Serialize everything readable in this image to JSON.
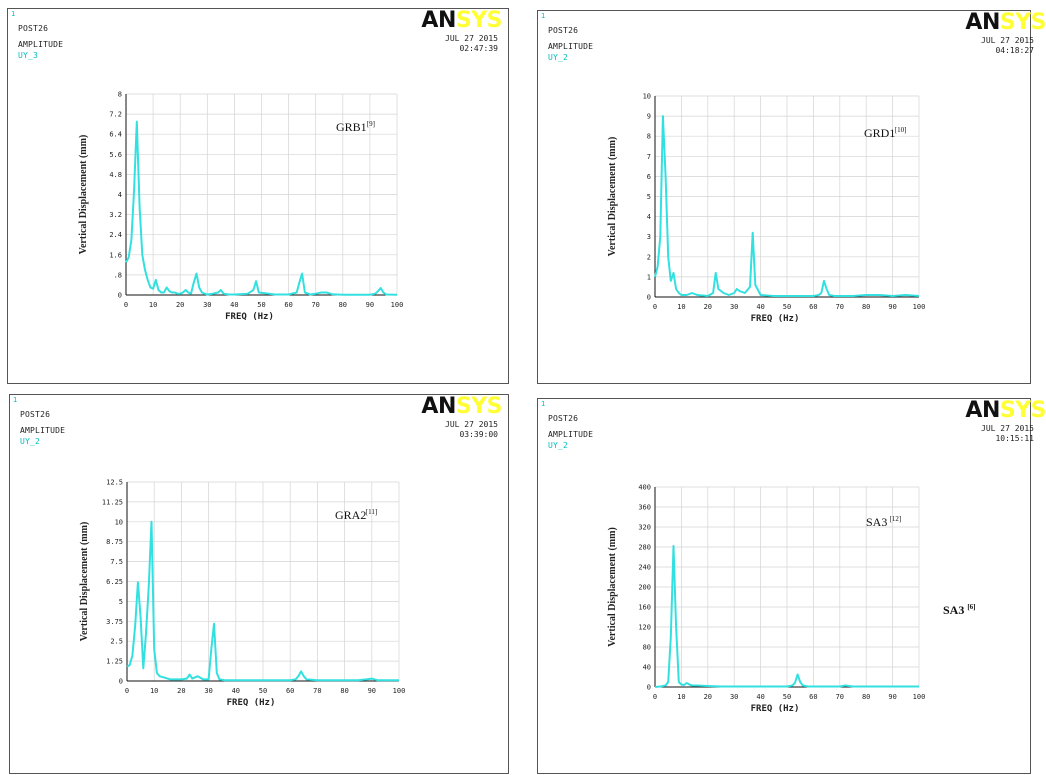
{
  "panels": [
    {
      "corner_label": "1",
      "program": "POST26",
      "display": "AMPLITUDE",
      "variable": "UY_3",
      "logo_dark": "AN",
      "logo_light": "SYS",
      "date": "JUL 27 2015",
      "time": "02:47:39"
    },
    {
      "corner_label": "1",
      "program": "POST26",
      "display": "AMPLITUDE",
      "variable": "UY_2",
      "logo_dark": "AN",
      "logo_light": "SYS",
      "date": "JUL 27 2015",
      "time": "04:18:27"
    },
    {
      "corner_label": "1",
      "program": "POST26",
      "display": "AMPLITUDE",
      "variable": "UY_2",
      "logo_dark": "AN",
      "logo_light": "SYS",
      "date": "JUL 27 2015",
      "time": "03:39:00"
    },
    {
      "corner_label": "1",
      "program": "POST26",
      "display": "AMPLITUDE",
      "variable": "UY_2",
      "logo_dark": "AN",
      "logo_light": "SYS",
      "date": "JUL 27 2015",
      "time": "10:15:11",
      "extra_label": "SA3",
      "extra_ref": "[6]"
    }
  ],
  "colors": {
    "curve": "#33e0e0",
    "grid": "#d4d4d4",
    "axis": "#111111",
    "accent_text": "#00bfbf",
    "logo_light": "#ffff33"
  },
  "chart_data": [
    {
      "type": "line",
      "title": "GRB1",
      "title_ref": "[9]",
      "xlabel": "FREQ  (Hz)",
      "ylabel": "Vertical Displacement (mm)",
      "xlim": [
        0,
        100
      ],
      "ylim": [
        0,
        8
      ],
      "xticks": [
        "0",
        "10",
        "20",
        "30",
        "40",
        "50",
        "60",
        "70",
        "80",
        "90",
        "100"
      ],
      "yticks": [
        "0",
        ".8",
        "1.6",
        "2.4",
        "3.2",
        "4",
        "4.8",
        "5.6",
        "6.4",
        "7.2",
        "8"
      ],
      "grid": true,
      "x": [
        0,
        1,
        2,
        3,
        4,
        5,
        6,
        7,
        8,
        9,
        10,
        11,
        12,
        13,
        14,
        15,
        16,
        17,
        18,
        19,
        20,
        21,
        22,
        23,
        24,
        25,
        26,
        27,
        28,
        29,
        30,
        32,
        34,
        35,
        36,
        38,
        40,
        45,
        47,
        48,
        49,
        55,
        60,
        63,
        64,
        65,
        66,
        68,
        70,
        72,
        74,
        76,
        78,
        80,
        90,
        92,
        93,
        94,
        95,
        96,
        100
      ],
      "y": [
        1.3,
        1.5,
        2.2,
        4.2,
        6.9,
        3.5,
        1.6,
        1.0,
        0.6,
        0.3,
        0.25,
        0.6,
        0.2,
        0.1,
        0.1,
        0.3,
        0.15,
        0.1,
        0.1,
        0.05,
        0.05,
        0.1,
        0.2,
        0.1,
        0.05,
        0.5,
        0.85,
        0.3,
        0.1,
        0.05,
        0.02,
        0.05,
        0.1,
        0.2,
        0.05,
        0.02,
        0.02,
        0.05,
        0.2,
        0.55,
        0.1,
        0.02,
        0.02,
        0.1,
        0.5,
        0.85,
        0.1,
        0.02,
        0.05,
        0.1,
        0.1,
        0.03,
        0.02,
        0.01,
        0.01,
        0.05,
        0.15,
        0.28,
        0.1,
        0.02,
        0.01
      ]
    },
    {
      "type": "line",
      "title": "GRD1",
      "title_ref": "[10]",
      "xlabel": "FREQ  (Hz)",
      "ylabel": "Vertical Displacement (mm)",
      "xlim": [
        0,
        100
      ],
      "ylim": [
        0,
        10
      ],
      "xticks": [
        "0",
        "10",
        "20",
        "30",
        "40",
        "50",
        "60",
        "70",
        "80",
        "90",
        "100"
      ],
      "yticks": [
        "0",
        "1",
        "2",
        "3",
        "4",
        "5",
        "6",
        "7",
        "8",
        "9",
        "10"
      ],
      "grid": true,
      "x": [
        0,
        1,
        2,
        3,
        4,
        5,
        6,
        7,
        8,
        9,
        10,
        12,
        14,
        16,
        20,
        22,
        23,
        24,
        26,
        28,
        30,
        31,
        32,
        34,
        36,
        37,
        38,
        40,
        45,
        50,
        55,
        60,
        62,
        63,
        64,
        65,
        66,
        68,
        70,
        75,
        80,
        85,
        90,
        95,
        100
      ],
      "y": [
        1.0,
        1.5,
        3.0,
        9.0,
        6.0,
        2.0,
        0.8,
        1.2,
        0.4,
        0.2,
        0.1,
        0.1,
        0.2,
        0.1,
        0.05,
        0.2,
        1.2,
        0.4,
        0.2,
        0.1,
        0.2,
        0.4,
        0.3,
        0.2,
        0.5,
        3.2,
        0.6,
        0.1,
        0.05,
        0.05,
        0.05,
        0.05,
        0.1,
        0.2,
        0.8,
        0.4,
        0.1,
        0.05,
        0.05,
        0.05,
        0.1,
        0.1,
        0.05,
        0.1,
        0.05
      ]
    },
    {
      "type": "line",
      "title": "GRA2",
      "title_ref": "[11]",
      "xlabel": "FREQ  (Hz)",
      "ylabel": "Vertical Displacement (mm)",
      "xlim": [
        0,
        100
      ],
      "ylim": [
        0,
        12.5
      ],
      "xticks": [
        "0",
        "10",
        "20",
        "30",
        "40",
        "50",
        "60",
        "70",
        "80",
        "90",
        "100"
      ],
      "yticks": [
        "0",
        "1.25",
        "2.5",
        "3.75",
        "5",
        "6.25",
        "7.5",
        "8.75",
        "10",
        "11.25",
        "12.5"
      ],
      "grid": true,
      "x": [
        0,
        1,
        2,
        3,
        4,
        5,
        6,
        7,
        8,
        9,
        10,
        11,
        12,
        14,
        16,
        18,
        20,
        22,
        23,
        24,
        26,
        28,
        30,
        31,
        32,
        33,
        34,
        36,
        40,
        45,
        50,
        55,
        60,
        62,
        63,
        64,
        65,
        66,
        70,
        75,
        80,
        85,
        88,
        90,
        92,
        95,
        100
      ],
      "y": [
        0.9,
        1.0,
        1.6,
        3.5,
        6.2,
        4.0,
        0.8,
        3.0,
        6.0,
        10.0,
        2.0,
        0.5,
        0.3,
        0.2,
        0.1,
        0.1,
        0.1,
        0.15,
        0.4,
        0.15,
        0.3,
        0.1,
        0.1,
        2.0,
        3.6,
        0.5,
        0.1,
        0.05,
        0.05,
        0.05,
        0.05,
        0.05,
        0.05,
        0.1,
        0.3,
        0.6,
        0.3,
        0.1,
        0.05,
        0.05,
        0.05,
        0.05,
        0.1,
        0.15,
        0.05,
        0.05,
        0.05
      ]
    },
    {
      "type": "line",
      "title": "SA3",
      "title_ref": "[12]",
      "xlabel": "FREQ  (Hz)",
      "ylabel": "Vertical Displacement (mm)",
      "xlim": [
        0,
        100
      ],
      "ylim": [
        0,
        400
      ],
      "xticks": [
        "0",
        "10",
        "20",
        "30",
        "40",
        "50",
        "60",
        "70",
        "80",
        "90",
        "100"
      ],
      "yticks": [
        "0",
        "40",
        "80",
        "120",
        "160",
        "200",
        "240",
        "280",
        "320",
        "360",
        "400"
      ],
      "grid": true,
      "x": [
        0,
        2,
        4,
        5,
        6,
        7,
        8,
        9,
        10,
        11,
        12,
        13,
        14,
        16,
        20,
        25,
        30,
        40,
        50,
        52,
        53,
        54,
        55,
        56,
        57,
        58,
        60,
        65,
        70,
        72,
        75,
        80,
        90,
        100
      ],
      "y": [
        0,
        1,
        3,
        10,
        100,
        282,
        120,
        10,
        5,
        4,
        8,
        5,
        3,
        3,
        2,
        1,
        1,
        1,
        1,
        3,
        8,
        25,
        10,
        3,
        2,
        1,
        1,
        1,
        1,
        3,
        1,
        1,
        1,
        1
      ]
    }
  ]
}
